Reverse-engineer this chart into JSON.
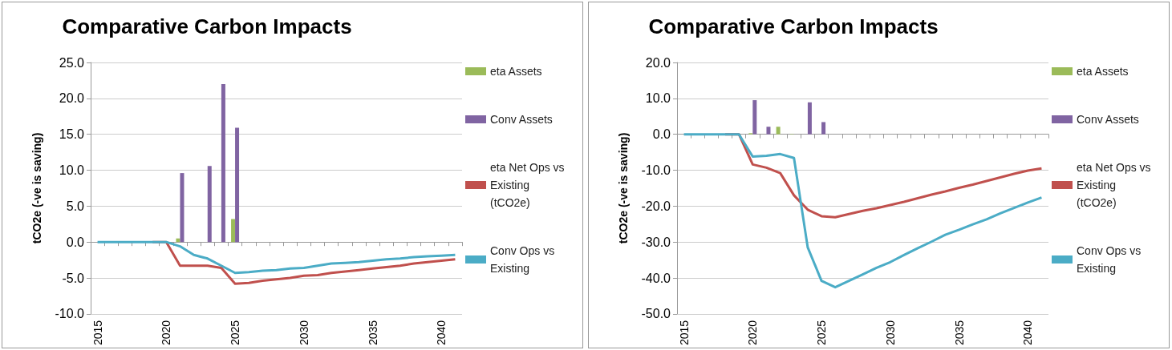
{
  "chart_data": [
    {
      "type": "bar",
      "title": "Comparative Carbon Impacts",
      "ylabel": "tCO2e (-ve is saving)",
      "categories": [
        "2015",
        null,
        null,
        null,
        null,
        "2020",
        null,
        null,
        null,
        null,
        "2025",
        null,
        null,
        null,
        null,
        "2030",
        null,
        null,
        null,
        null,
        "2035",
        null,
        null,
        null,
        null,
        "2040",
        null
      ],
      "series": [
        {
          "name": "eta Assets",
          "color": "#9bbb59",
          "values": [
            0,
            0,
            0,
            0,
            0,
            0,
            0.5,
            0,
            0,
            0,
            3.2,
            0,
            0,
            0,
            0,
            0,
            0,
            0,
            0,
            0,
            0,
            0,
            0,
            0,
            0,
            0,
            0
          ]
        },
        {
          "name": "Conv Assets",
          "color": "#8064a2",
          "values": [
            0,
            0,
            0,
            0,
            0,
            0,
            9.6,
            0,
            10.6,
            22.0,
            15.9,
            0,
            0,
            0,
            0,
            0,
            0,
            0,
            0,
            0,
            0,
            0,
            0,
            0,
            0,
            0,
            0
          ]
        },
        {
          "name": "eta Net Ops vs Existing (tCO2e)",
          "type": "line",
          "color": "#c0504d",
          "values": [
            null,
            null,
            null,
            null,
            0,
            0,
            -3.3,
            -3.3,
            -3.3,
            -3.6,
            -5.8,
            -5.7,
            -5.4,
            -5.2,
            -5.0,
            -4.7,
            -4.6,
            -4.3,
            -4.1,
            -3.9,
            -3.7,
            -3.5,
            -3.3,
            -3.0,
            -2.8,
            -2.6,
            -2.4
          ]
        },
        {
          "name": "Conv Ops vs Existing",
          "type": "line",
          "color": "#4bacc6",
          "values": [
            0,
            0,
            0,
            0,
            0,
            0,
            -0.6,
            -1.8,
            -2.3,
            -3.3,
            -4.3,
            -4.2,
            -4.0,
            -3.9,
            -3.7,
            -3.6,
            -3.3,
            -3.0,
            -2.9,
            -2.8,
            -2.6,
            -2.4,
            -2.3,
            -2.1,
            -2.0,
            -1.9,
            -1.8
          ]
        }
      ],
      "ylim": [
        -10,
        25
      ],
      "yticks": [
        {
          "value": -10,
          "label": "-10.0"
        },
        {
          "value": -5,
          "label": "-5.0"
        },
        {
          "value": 0,
          "label": "0.0"
        },
        {
          "value": 5,
          "label": "5.0"
        },
        {
          "value": 10,
          "label": "10.0"
        },
        {
          "value": 15,
          "label": "15.0"
        },
        {
          "value": 20,
          "label": "20.0"
        },
        {
          "value": 25,
          "label": "25.0"
        }
      ],
      "grid": "y",
      "legend": "right",
      "marker": "none",
      "line_style": "solid"
    },
    {
      "type": "bar",
      "title": "Comparative Carbon Impacts",
      "ylabel": "tCO2e (-ve is saving)",
      "categories": [
        "2015",
        null,
        null,
        null,
        null,
        "2020",
        null,
        null,
        null,
        null,
        "2025",
        null,
        null,
        null,
        null,
        "2030",
        null,
        null,
        null,
        null,
        "2035",
        null,
        null,
        null,
        null,
        "2040",
        null
      ],
      "series": [
        {
          "name": "eta Assets",
          "color": "#9bbb59",
          "values": [
            0,
            0,
            0,
            0,
            0,
            0.3,
            0,
            2.1,
            0.1,
            0,
            0,
            0,
            0,
            0,
            0,
            0,
            0,
            0,
            0,
            0,
            0,
            0,
            0,
            0,
            0,
            0,
            0
          ]
        },
        {
          "name": "Conv Assets",
          "color": "#8064a2",
          "values": [
            0,
            0,
            0,
            0,
            0,
            9.5,
            2.1,
            0,
            0,
            8.9,
            3.4,
            0,
            0,
            0,
            0,
            0,
            0,
            0,
            0,
            0,
            0,
            0,
            0,
            0,
            0,
            0,
            0
          ]
        },
        {
          "name": "eta Net Ops vs Existing (tCO2e)",
          "type": "line",
          "color": "#c0504d",
          "values": [
            null,
            null,
            null,
            0,
            0,
            -8.4,
            -9.3,
            -10.8,
            -17.0,
            -21.0,
            -22.8,
            -23.1,
            -22.2,
            -21.3,
            -20.6,
            -19.7,
            -18.8,
            -17.8,
            -16.8,
            -15.9,
            -14.9,
            -14.0,
            -13.0,
            -12.0,
            -11.0,
            -10.1,
            -9.5
          ]
        },
        {
          "name": "Conv Ops vs Existing",
          "type": "line",
          "color": "#4bacc6",
          "values": [
            0,
            0,
            0,
            0,
            0,
            -6.2,
            -6.0,
            -5.5,
            -6.6,
            -31.5,
            -40.8,
            -42.6,
            -40.8,
            -39.0,
            -37.2,
            -35.6,
            -33.6,
            -31.7,
            -29.9,
            -28.0,
            -26.6,
            -25.1,
            -23.7,
            -22.0,
            -20.5,
            -19.0,
            -17.6
          ]
        }
      ],
      "ylim": [
        -50,
        20
      ],
      "yticks": [
        {
          "value": -50,
          "label": "-50.0"
        },
        {
          "value": -40,
          "label": "-40.0"
        },
        {
          "value": -30,
          "label": "-30.0"
        },
        {
          "value": -20,
          "label": "-20.0"
        },
        {
          "value": -10,
          "label": "-10.0"
        },
        {
          "value": 0,
          "label": "0.0"
        },
        {
          "value": 10,
          "label": "10.0"
        },
        {
          "value": 20,
          "label": "20.0"
        }
      ],
      "grid": "y",
      "legend": "right",
      "marker": "none",
      "line_style": "solid"
    }
  ]
}
